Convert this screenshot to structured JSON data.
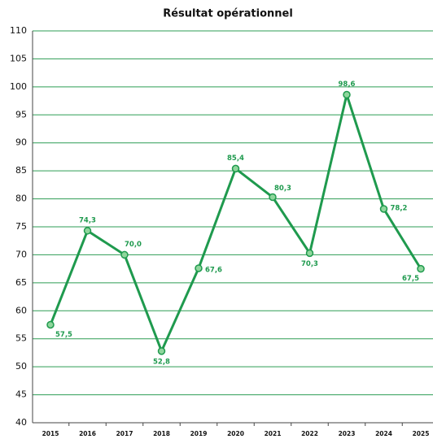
{
  "chart_data": {
    "type": "line",
    "title": "Résultat opérationnel",
    "categories": [
      "2015",
      "2016",
      "2017",
      "2018",
      "2019",
      "2020",
      "2021",
      "2022",
      "2023",
      "2024",
      "2025"
    ],
    "series": [
      {
        "name": "Résultat opérationnel",
        "color": "#1f9a4e",
        "values": [
          57.5,
          74.3,
          70.0,
          52.8,
          67.6,
          85.4,
          80.3,
          70.3,
          98.6,
          78.2,
          67.5
        ],
        "value_labels": [
          "57,5",
          "74,3",
          "70,0",
          "52,8",
          "67,6",
          "85,4",
          "80,3",
          "70,3",
          "98,6",
          "78,2",
          "67,5"
        ]
      }
    ],
    "ylim": [
      40,
      110
    ],
    "yticks": [
      40,
      45,
      50,
      55,
      60,
      65,
      70,
      75,
      80,
      85,
      90,
      95,
      100,
      105,
      110
    ],
    "grid": true
  }
}
